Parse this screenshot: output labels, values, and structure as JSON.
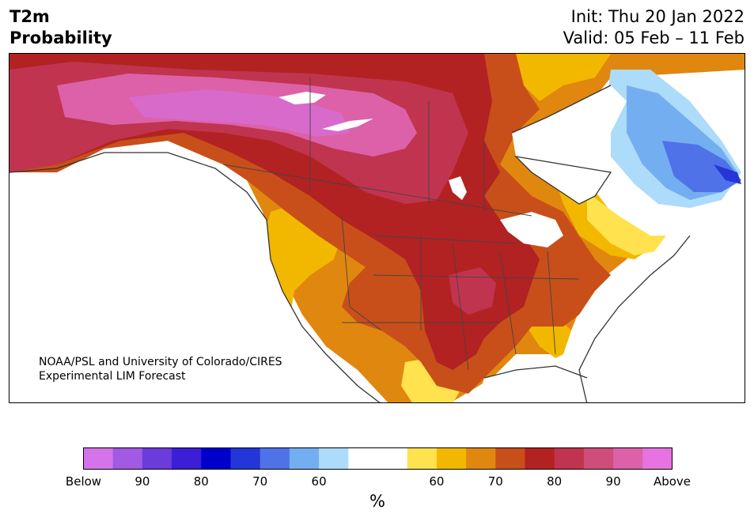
{
  "header": {
    "variable": "T2m",
    "product": "Probability",
    "init": "Init: Thu 20 Jan 2022",
    "valid": "Valid: 05 Feb – 11 Feb"
  },
  "credit": {
    "line1": "NOAA/PSL and University of Colorado/CIRES",
    "line2": "Experimental LIM Forecast"
  },
  "colorbar": {
    "unit": "%",
    "colors": [
      "#d573ea",
      "#a05ae4",
      "#6b3bdc",
      "#3b1ed6",
      "#0000cc",
      "#2436d8",
      "#4f72e8",
      "#73aff0",
      "#addbfa",
      "#ffffff",
      "#ffffff",
      "#ffe24d",
      "#f2b800",
      "#e0870f",
      "#c84f1a",
      "#b22222",
      "#c0344f",
      "#cf4d7a",
      "#dc61a8",
      "#e673df"
    ],
    "labels": [
      "Below",
      "90",
      "80",
      "70",
      "60",
      "",
      "60",
      "70",
      "80",
      "90",
      "Above"
    ]
  },
  "map": {
    "region": "North America",
    "colors": {
      "above90": "#dc61a8",
      "p80": "#c0344f",
      "p75": "#b22222",
      "p70": "#c84f1a",
      "p65": "#e0870f",
      "p60": "#f2b800",
      "p55": "#ffe24d",
      "b55": "#addbfa",
      "b60": "#73aff0",
      "b70": "#4f72e8",
      "b75": "#2436d8",
      "coast": "#333333",
      "water": "#ffffff"
    }
  }
}
